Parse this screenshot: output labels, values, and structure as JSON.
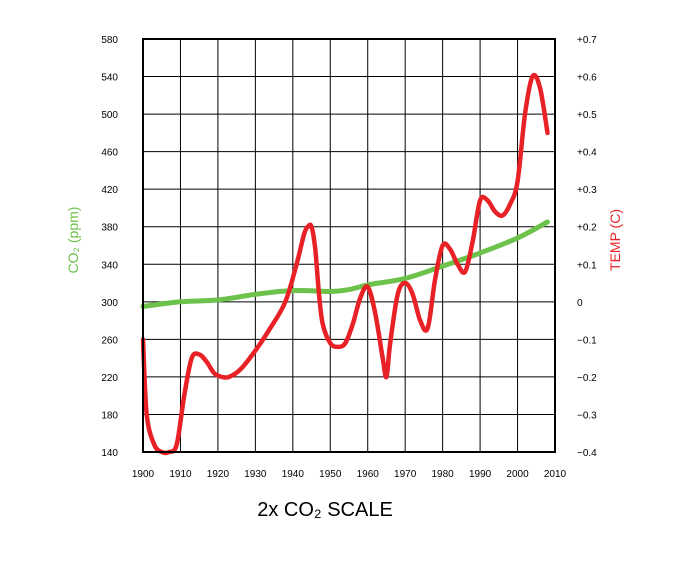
{
  "chart_data": {
    "type": "line",
    "caption": "2x CO₂ SCALE",
    "xlabel": "",
    "y_left_label": "CO₂ (ppm)",
    "y_right_label": "TEMP (C)",
    "xlim": [
      1900,
      2010
    ],
    "ylim_left": [
      140,
      580
    ],
    "ylim_right": [
      -0.4,
      0.7
    ],
    "grid": true,
    "x_ticks": [
      "1900",
      "1910",
      "1920",
      "1930",
      "1940",
      "1950",
      "1960",
      "1970",
      "1980",
      "1990",
      "2000",
      "2010"
    ],
    "y_left_ticks": [
      "140",
      "180",
      "220",
      "260",
      "300",
      "340",
      "380",
      "420",
      "460",
      "500",
      "540",
      "580"
    ],
    "y_right_ticks": [
      "-0.4",
      "-0.3",
      "-0.2",
      "-0.1",
      "0",
      "+0.1",
      "+0.2",
      "+0.3",
      "+0.4",
      "+0.5",
      "+0.6",
      "+0.7"
    ],
    "colors": {
      "co2": "#6cc24a",
      "temp": "#e82127"
    },
    "series": [
      {
        "axis": "left",
        "x": [
          1900,
          1910,
          1920,
          1930,
          1940,
          1950,
          1955,
          1960,
          1970,
          1980,
          1990,
          2000,
          2008
        ],
        "y": [
          295,
          300,
          302,
          308,
          312,
          311,
          313,
          318,
          325,
          338,
          352,
          368,
          385
        ]
      },
      {
        "axis": "right",
        "x": [
          1900,
          1901,
          1903,
          1905,
          1907,
          1909,
          1911,
          1913,
          1915,
          1917,
          1919,
          1921,
          1923,
          1926,
          1930,
          1934,
          1938,
          1941,
          1943,
          1944,
          1945,
          1946,
          1947,
          1948,
          1950,
          1952,
          1954,
          1956,
          1958,
          1960,
          1962,
          1964,
          1965,
          1966,
          1968,
          1970,
          1972,
          1974,
          1976,
          1978,
          1980,
          1982,
          1984,
          1986,
          1988,
          1990,
          1992,
          1994,
          1996,
          1998,
          2000,
          2002,
          2004,
          2006,
          2008
        ],
        "y": [
          -0.1,
          -0.3,
          -0.38,
          -0.4,
          -0.4,
          -0.38,
          -0.25,
          -0.15,
          -0.14,
          -0.16,
          -0.19,
          -0.2,
          -0.2,
          -0.18,
          -0.13,
          -0.07,
          0,
          0.1,
          0.18,
          0.2,
          0.2,
          0.14,
          0.02,
          -0.06,
          -0.11,
          -0.12,
          -0.11,
          -0.06,
          0.01,
          0.04,
          -0.03,
          -0.15,
          -0.2,
          -0.11,
          0.02,
          0.05,
          0.02,
          -0.05,
          -0.07,
          0.06,
          0.15,
          0.14,
          0.1,
          0.08,
          0.16,
          0.27,
          0.27,
          0.24,
          0.23,
          0.26,
          0.32,
          0.5,
          0.6,
          0.57,
          0.45
        ]
      }
    ]
  }
}
